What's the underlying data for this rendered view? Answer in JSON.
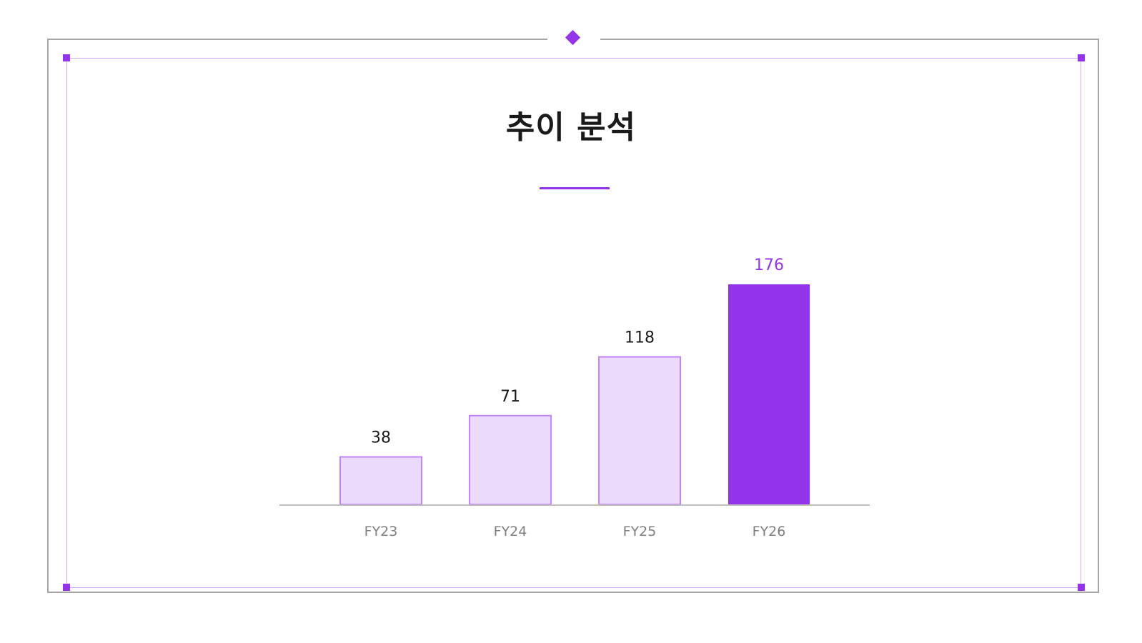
{
  "colors": {
    "accent": "#9333ea",
    "bar_light_fill": "#ecdafd",
    "bar_light_stroke": "#c084fc",
    "frame_gray": "#a6a6a6",
    "axis_gray": "#bfbfbf",
    "value_text": "#1a1a1a",
    "tick_text": "#808080"
  },
  "chart_data": {
    "type": "bar",
    "title": "추이 분석",
    "categories": [
      "FY23",
      "FY24",
      "FY25",
      "FY26"
    ],
    "values": [
      38,
      71,
      118,
      176
    ],
    "value_labels": [
      "38",
      "71",
      "118",
      "176"
    ],
    "highlight_index": 3,
    "ylim": [
      0,
      176
    ],
    "grid": false,
    "legend": "none",
    "xlabel": "",
    "ylabel": ""
  }
}
